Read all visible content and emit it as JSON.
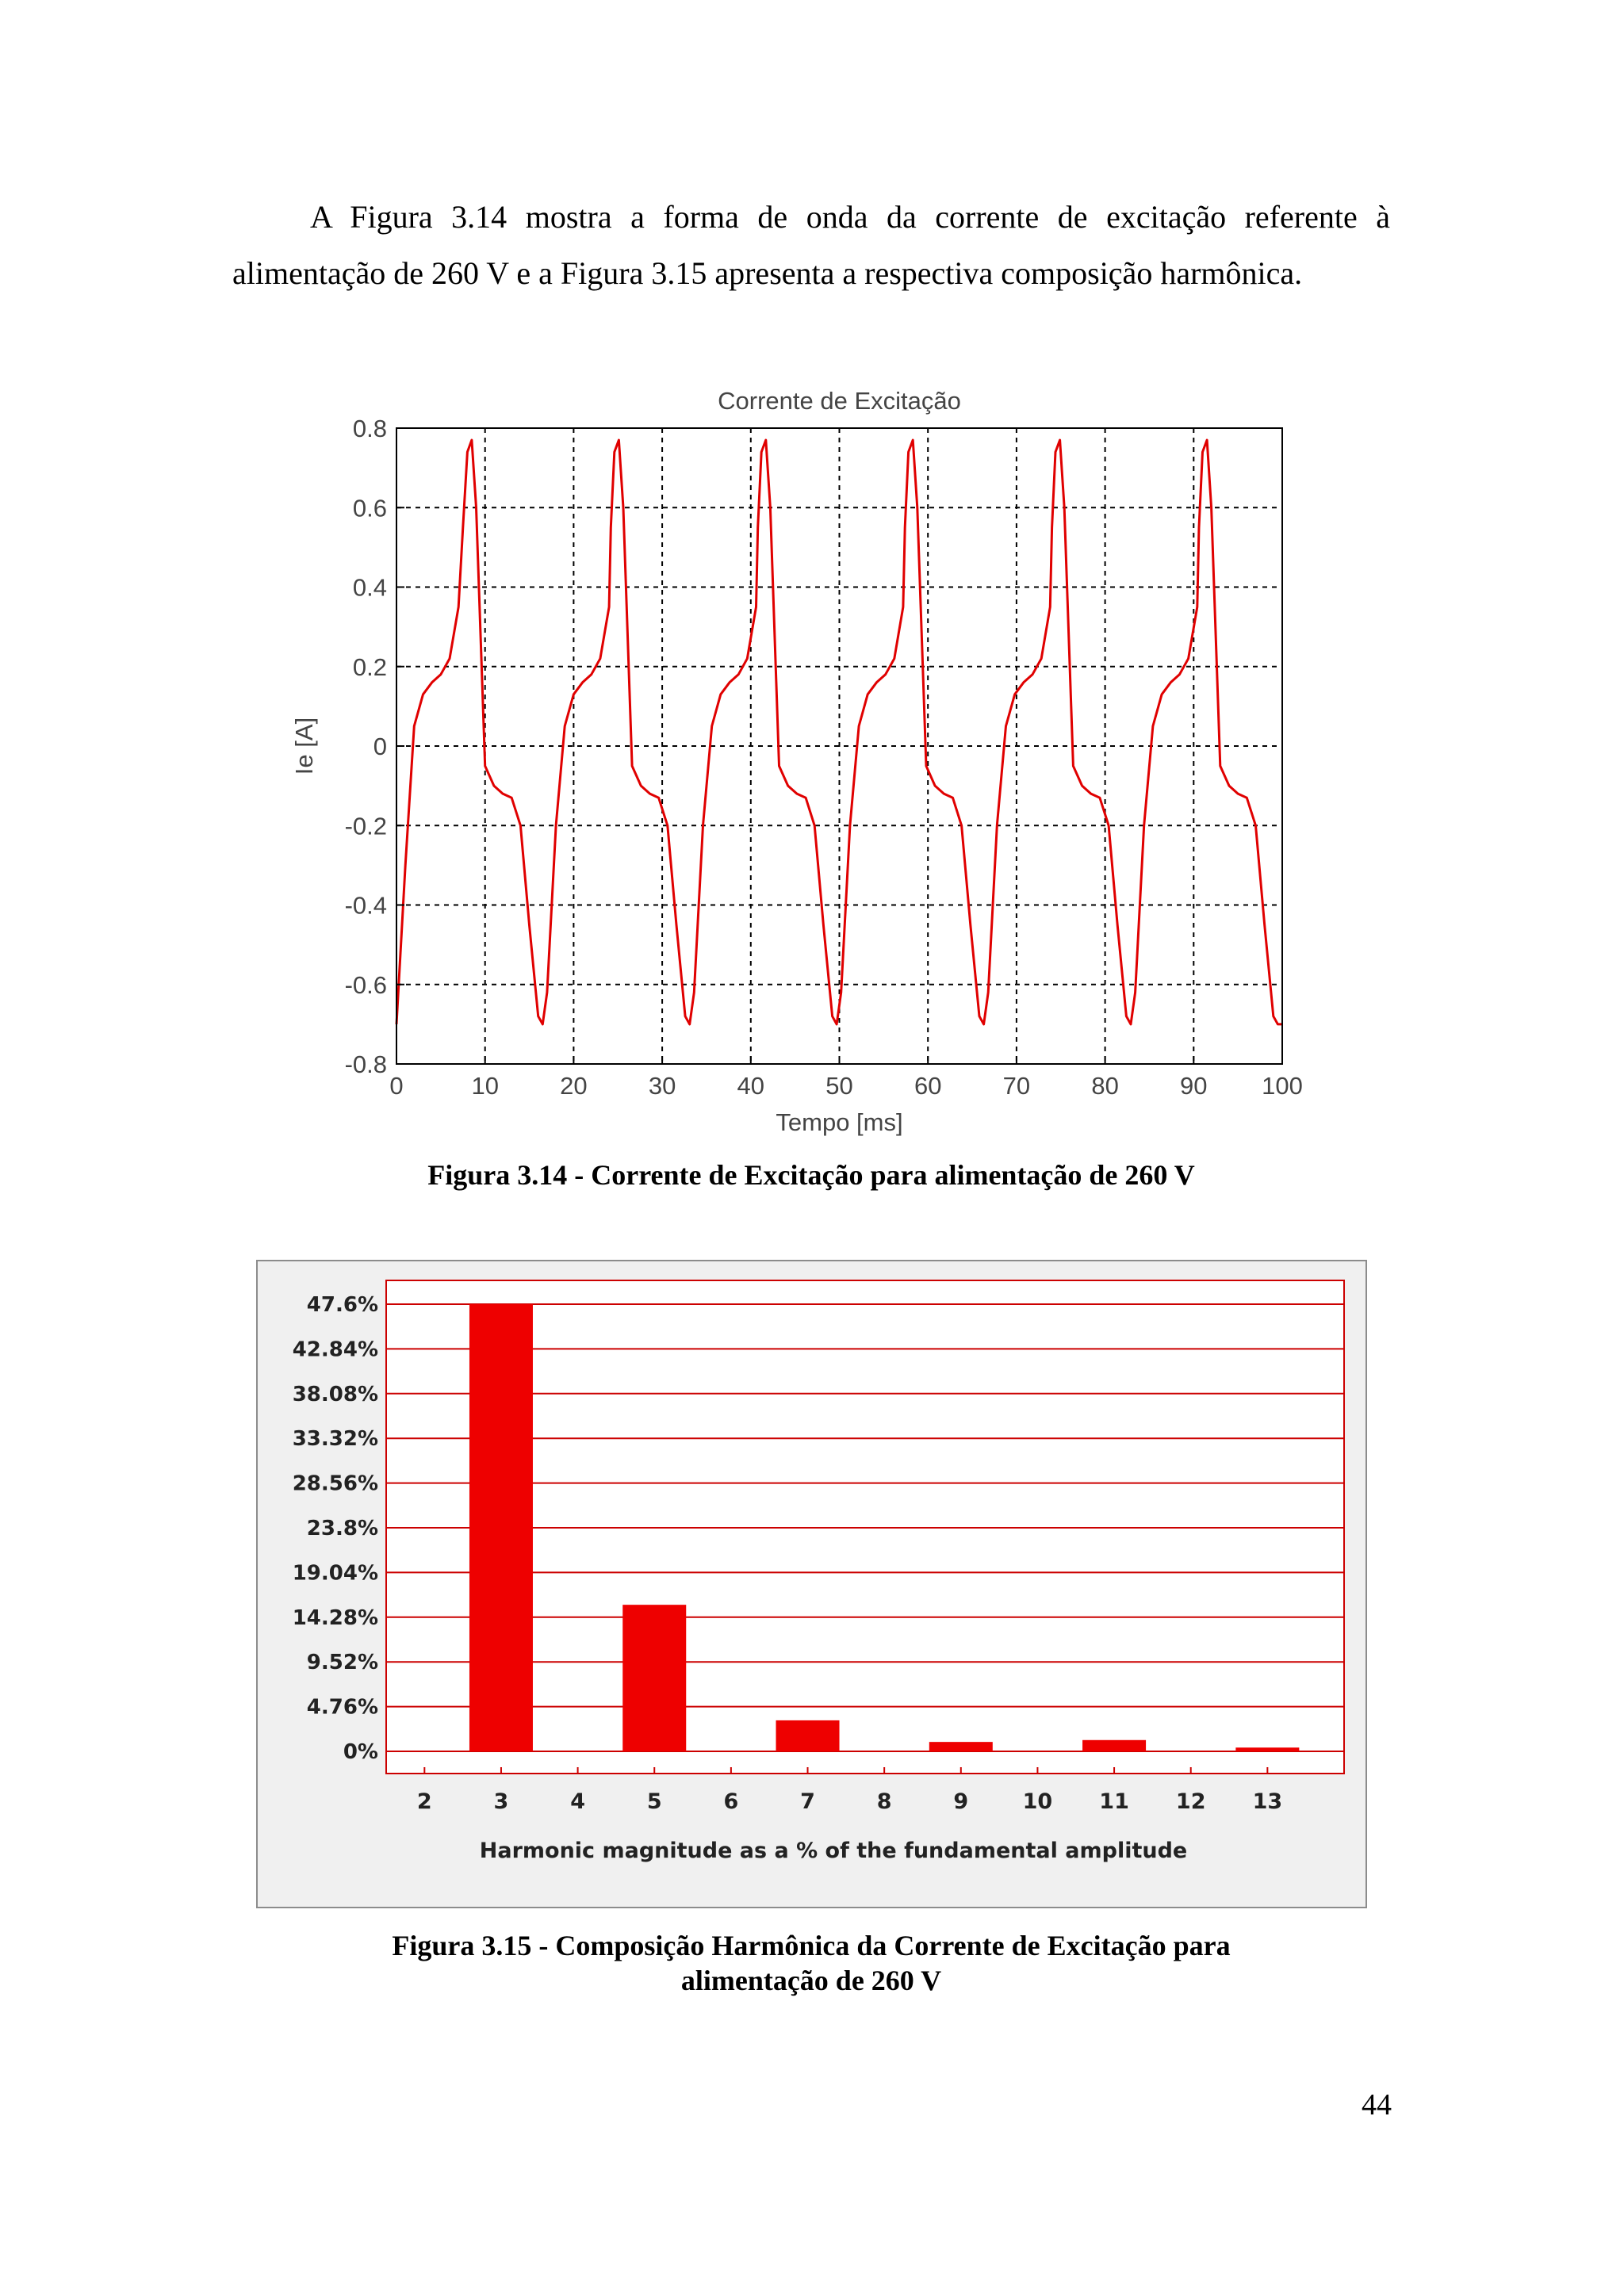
{
  "paragraph": {
    "text": "A Figura 3.14 mostra a forma de onda da corrente de excitação referente à alimentação de 260 V e a Figura 3.15 apresenta a respectiva composição harmônica."
  },
  "captions": {
    "fig_3_14": "Figura 3.14 - Corrente de Excitação para alimentação de 260 V",
    "fig_3_15_line1": "Figura 3.15 - Composição Harmônica da Corrente de Excitação para",
    "fig_3_15_line2": "alimentação de 260 V"
  },
  "page_number": "44",
  "colors": {
    "waveform": "#e00000",
    "bar": "#ee0000",
    "grid_red": "#cc0000",
    "panel_bg": "#f0f0f0"
  },
  "chart_data": [
    {
      "type": "line",
      "title": "Corrente de Excitação",
      "xlabel": "Tempo [ms]",
      "ylabel": "Ie [A]",
      "xlim": [
        0,
        100
      ],
      "ylim": [
        -0.8,
        0.8
      ],
      "xticks": [
        "0",
        "10",
        "20",
        "30",
        "40",
        "50",
        "60",
        "70",
        "80",
        "90",
        "100"
      ],
      "yticks": [
        "0.8",
        "0.6",
        "0.4",
        "0.2",
        "0",
        "-0.2",
        "-0.4",
        "-0.6",
        "-0.8"
      ],
      "grid": "dashed",
      "series": [
        {
          "x": [
            0,
            1,
            2,
            3,
            4,
            5,
            6,
            7,
            7.5,
            8,
            8.5,
            9,
            10,
            11,
            12,
            13,
            14,
            15,
            16,
            16.5,
            17,
            18,
            19,
            20,
            21,
            22,
            23,
            24,
            24.2,
            24.6,
            25.1,
            25.6,
            26.6,
            27.6,
            28.6,
            29.6,
            30.6,
            31.6,
            32.6,
            33.1,
            33.6,
            34.6,
            35.6,
            36.6,
            37.6,
            38.6,
            39.6,
            40.6,
            40.8,
            41.2,
            41.7,
            42.2,
            43.2,
            44.2,
            45.2,
            46.2,
            47.2,
            48.2,
            49.2,
            49.7,
            50.2,
            51.2,
            52.2,
            53.2,
            54.2,
            55.2,
            56.2,
            57.2,
            57.4,
            57.8,
            58.3,
            58.8,
            59.8,
            60.8,
            61.8,
            62.8,
            63.8,
            64.8,
            65.8,
            66.3,
            66.8,
            67.8,
            68.8,
            69.8,
            70.8,
            71.8,
            72.8,
            73.8,
            74,
            74.4,
            74.9,
            75.4,
            76.4,
            77.4,
            78.4,
            79.4,
            80.4,
            81.4,
            82.4,
            82.9,
            83.4,
            84.4,
            85.4,
            86.4,
            87.4,
            88.4,
            89.4,
            90.4,
            90.6,
            91,
            91.5,
            92,
            93,
            94,
            95,
            96,
            97,
            98,
            99,
            99.5,
            100
          ],
          "y": [
            -0.7,
            -0.3,
            0.05,
            0.13,
            0.16,
            0.18,
            0.22,
            0.35,
            0.55,
            0.74,
            0.77,
            0.6,
            -0.05,
            -0.1,
            -0.12,
            -0.13,
            -0.2,
            -0.45,
            -0.68,
            -0.7,
            -0.62,
            -0.2,
            0.05,
            0.13,
            0.16,
            0.18,
            0.22,
            0.35,
            0.55,
            0.74,
            0.77,
            0.6,
            -0.05,
            -0.1,
            -0.12,
            -0.13,
            -0.2,
            -0.45,
            -0.68,
            -0.7,
            -0.62,
            -0.2,
            0.05,
            0.13,
            0.16,
            0.18,
            0.22,
            0.35,
            0.55,
            0.74,
            0.77,
            0.6,
            -0.05,
            -0.1,
            -0.12,
            -0.13,
            -0.2,
            -0.45,
            -0.68,
            -0.7,
            -0.62,
            -0.2,
            0.05,
            0.13,
            0.16,
            0.18,
            0.22,
            0.35,
            0.55,
            0.74,
            0.77,
            0.6,
            -0.05,
            -0.1,
            -0.12,
            -0.13,
            -0.2,
            -0.45,
            -0.68,
            -0.7,
            -0.62,
            -0.2,
            0.05,
            0.13,
            0.16,
            0.18,
            0.22,
            0.35,
            0.55,
            0.74,
            0.77,
            0.6,
            -0.05,
            -0.1,
            -0.12,
            -0.13,
            -0.2,
            -0.45,
            -0.68,
            -0.7,
            -0.62,
            -0.2,
            0.05,
            0.13,
            0.16,
            0.18,
            0.22,
            0.35,
            0.55,
            0.74,
            0.77,
            0.6,
            -0.05,
            -0.1,
            -0.12,
            -0.13,
            -0.2,
            -0.45,
            -0.68,
            -0.7,
            -0.7
          ]
        }
      ]
    },
    {
      "type": "bar",
      "title": "",
      "xlabel": "Harmonic magnitude as a % of the fundamental amplitude",
      "ylabel": "",
      "categories": [
        "2",
        "3",
        "4",
        "5",
        "6",
        "7",
        "8",
        "9",
        "10",
        "11",
        "12",
        "13"
      ],
      "values": [
        0,
        47.6,
        0,
        15.6,
        0,
        3.3,
        0,
        1.0,
        0,
        1.2,
        0,
        0.4
      ],
      "ylim": [
        0,
        47.6
      ],
      "yticks": [
        "47.6%",
        "42.84%",
        "38.08%",
        "33.32%",
        "28.56%",
        "23.8%",
        "19.04%",
        "14.28%",
        "9.52%",
        "4.76%",
        "0%"
      ],
      "grid": "horizontal"
    }
  ]
}
